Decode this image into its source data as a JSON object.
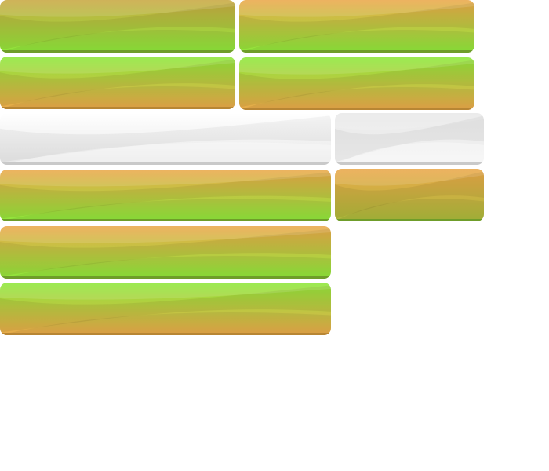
{
  "colors": {
    "orange": "#eba84a",
    "green": "#8de83a",
    "olive": "#c9a843",
    "white_top": "#ffffff",
    "white_bottom": "#e6e6e6",
    "gray_top": "#e9e9e9",
    "gray_bottom": "#f2f2f2",
    "green_edge": "#6f9d2a",
    "orange_edge": "#b88634",
    "gray_edge": "#c9c9c9"
  },
  "buttons": [
    {
      "id": "b1",
      "style": "olive-to-green"
    },
    {
      "id": "b2",
      "style": "orange-to-green"
    },
    {
      "id": "b3",
      "style": "green-to-orange"
    },
    {
      "id": "b4",
      "style": "green-to-orange"
    },
    {
      "id": "b5",
      "style": "white"
    },
    {
      "id": "b6",
      "style": "light-gray"
    },
    {
      "id": "b7",
      "style": "orange-to-green"
    },
    {
      "id": "b8",
      "style": "orange-to-olive"
    },
    {
      "id": "b9",
      "style": "orange-to-green"
    },
    {
      "id": "b10",
      "style": "green-to-orange"
    }
  ]
}
